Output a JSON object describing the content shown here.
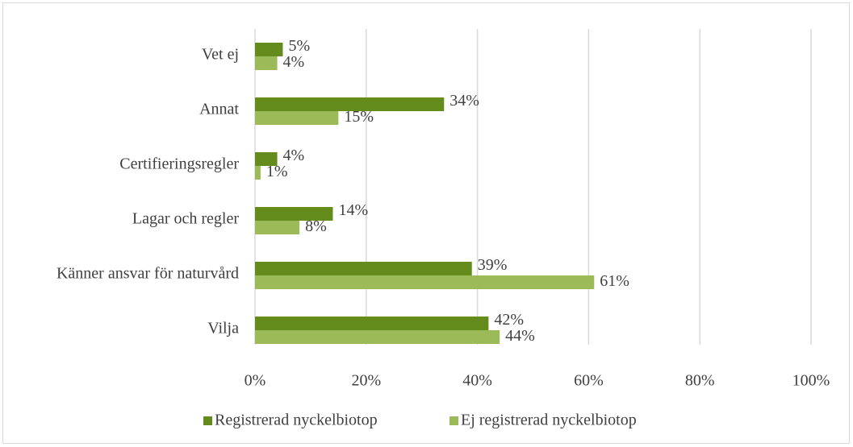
{
  "chart_data": {
    "type": "bar",
    "orientation": "horizontal",
    "categories": [
      "Vet ej",
      "Annat",
      "Certifieringsregler",
      "Lagar och regler",
      "Känner ansvar för naturvård",
      "Vilja"
    ],
    "series": [
      {
        "name": "Registrerad nyckelbiotop",
        "color": "#638c1c",
        "values": [
          5,
          34,
          4,
          14,
          39,
          42
        ],
        "value_labels": [
          "5%",
          "34%",
          "4%",
          "14%",
          "39%",
          "42%"
        ]
      },
      {
        "name": "Ej registrerad nyckelbiotop",
        "color": "#9bbb59",
        "values": [
          4,
          15,
          1,
          8,
          61,
          44
        ],
        "value_labels": [
          "4%",
          "15%",
          "1%",
          "8%",
          "61%",
          "44%"
        ]
      }
    ],
    "xlim": [
      0,
      100
    ],
    "xticks": [
      {
        "value": 0,
        "label": "0%"
      },
      {
        "value": 20,
        "label": "20%"
      },
      {
        "value": 40,
        "label": "40%"
      },
      {
        "value": 60,
        "label": "60%"
      },
      {
        "value": 80,
        "label": "80%"
      },
      {
        "value": 100,
        "label": "100%"
      }
    ],
    "grid": true,
    "legend": "bottom"
  }
}
